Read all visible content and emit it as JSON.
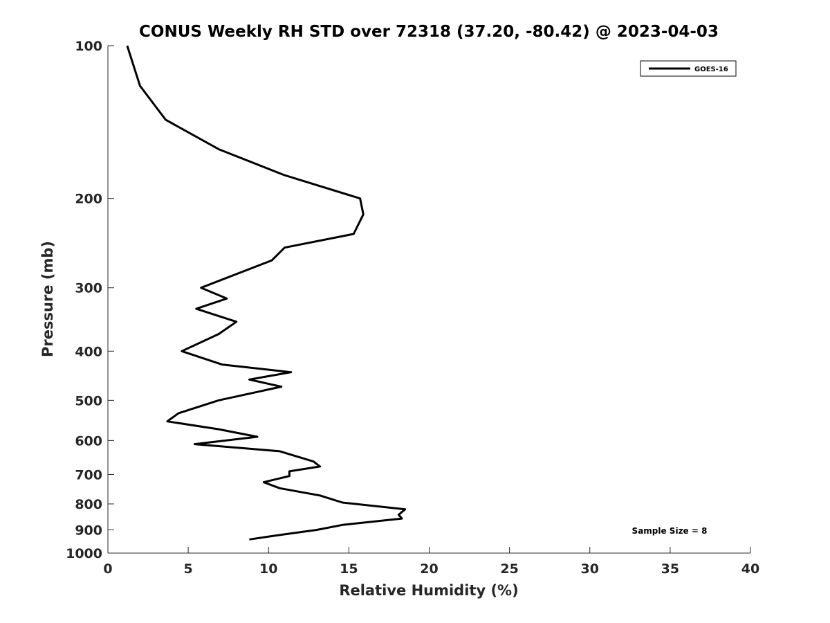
{
  "chart_data": {
    "type": "line",
    "title": "CONUS Weekly RH STD over 72318 (37.20, -80.42) @ 2023-04-03",
    "xlabel": "Relative Humidity (%)",
    "ylabel": "Pressure (mb)",
    "xlim": [
      0,
      40
    ],
    "ylim": [
      100,
      1000
    ],
    "y_scale": "log",
    "y_reversed": true,
    "x_ticks": [
      "0",
      "5",
      "10",
      "15",
      "20",
      "25",
      "30",
      "35",
      "40"
    ],
    "y_ticks": [
      "100",
      "200",
      "300",
      "400",
      "500",
      "600",
      "700",
      "800",
      "900",
      "1000"
    ],
    "grid": false,
    "legend_position": "top-right",
    "series": [
      {
        "name": "GOES-16",
        "color": "#000000",
        "points": [
          [
            1.2,
            100
          ],
          [
            2.0,
            120
          ],
          [
            3.6,
            140
          ],
          [
            6.9,
            160
          ],
          [
            11.0,
            180
          ],
          [
            15.7,
            200
          ],
          [
            15.9,
            215
          ],
          [
            15.3,
            235
          ],
          [
            11.0,
            250
          ],
          [
            10.2,
            265
          ],
          [
            5.8,
            300
          ],
          [
            7.4,
            315
          ],
          [
            5.5,
            330
          ],
          [
            8.0,
            350
          ],
          [
            6.9,
            370
          ],
          [
            4.6,
            400
          ],
          [
            7.1,
            425
          ],
          [
            11.4,
            440
          ],
          [
            8.8,
            455
          ],
          [
            10.8,
            470
          ],
          [
            6.9,
            500
          ],
          [
            4.4,
            530
          ],
          [
            3.7,
            550
          ],
          [
            6.9,
            570
          ],
          [
            9.3,
            590
          ],
          [
            5.4,
            610
          ],
          [
            10.7,
            630
          ],
          [
            12.8,
            660
          ],
          [
            13.2,
            675
          ],
          [
            11.3,
            690
          ],
          [
            11.3,
            705
          ],
          [
            9.7,
            725
          ],
          [
            10.7,
            745
          ],
          [
            13.2,
            770
          ],
          [
            14.6,
            795
          ],
          [
            18.5,
            820
          ],
          [
            18.1,
            840
          ],
          [
            18.3,
            855
          ],
          [
            14.6,
            880
          ],
          [
            13.0,
            900
          ],
          [
            10.8,
            920
          ],
          [
            8.8,
            940
          ]
        ]
      }
    ],
    "annotations": [
      "Sample Size = 8"
    ]
  }
}
